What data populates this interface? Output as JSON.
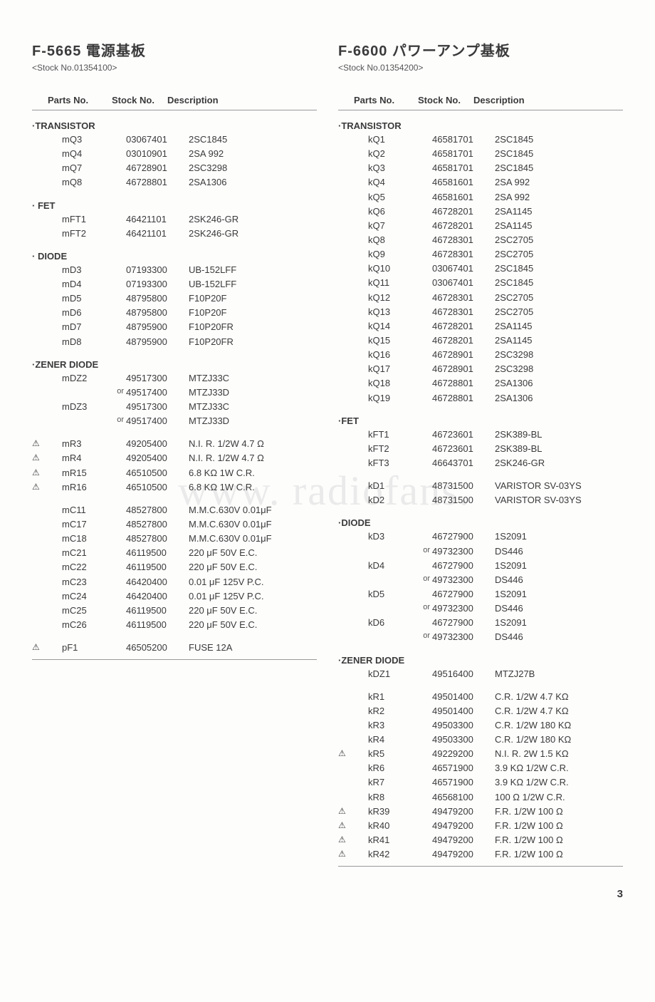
{
  "page_number": "3",
  "watermark": "www.    radiofans.",
  "headers": {
    "parts": "Parts No.",
    "stock": "Stock No.",
    "desc": "Description"
  },
  "left": {
    "title": "F-5665  電源基板",
    "stockline": "<Stock No.01354100>",
    "sections": [
      {
        "title": "·TRANSISTOR",
        "rows": [
          {
            "mark": "",
            "part": "mQ3",
            "or": "",
            "stock": "03067401",
            "desc": "2SC1845"
          },
          {
            "mark": "",
            "part": "mQ4",
            "or": "",
            "stock": "03010901",
            "desc": "2SA 992"
          },
          {
            "mark": "",
            "part": "mQ7",
            "or": "",
            "stock": "46728901",
            "desc": "2SC3298"
          },
          {
            "mark": "",
            "part": "mQ8",
            "or": "",
            "stock": "46728801",
            "desc": "2SA1306"
          }
        ]
      },
      {
        "title": "· FET",
        "rows": [
          {
            "mark": "",
            "part": "mFT1",
            "or": "",
            "stock": "46421101",
            "desc": "2SK246-GR"
          },
          {
            "mark": "",
            "part": "mFT2",
            "or": "",
            "stock": "46421101",
            "desc": "2SK246-GR"
          }
        ]
      },
      {
        "title": "· DIODE",
        "rows": [
          {
            "mark": "",
            "part": "mD3",
            "or": "",
            "stock": "07193300",
            "desc": "UB-152LFF"
          },
          {
            "mark": "",
            "part": "mD4",
            "or": "",
            "stock": "07193300",
            "desc": "UB-152LFF"
          },
          {
            "mark": "",
            "part": "mD5",
            "or": "",
            "stock": "48795800",
            "desc": "F10P20F"
          },
          {
            "mark": "",
            "part": "mD6",
            "or": "",
            "stock": "48795800",
            "desc": "F10P20F"
          },
          {
            "mark": "",
            "part": "mD7",
            "or": "",
            "stock": "48795900",
            "desc": "F10P20FR"
          },
          {
            "mark": "",
            "part": "mD8",
            "or": "",
            "stock": "48795900",
            "desc": "F10P20FR"
          }
        ]
      },
      {
        "title": "·ZENER DIODE",
        "rows": [
          {
            "mark": "",
            "part": "mDZ2",
            "or": "",
            "stock": "49517300",
            "desc": "MTZJ33C"
          },
          {
            "mark": "",
            "part": "",
            "or": "or",
            "stock": "49517400",
            "desc": "MTZJ33D"
          },
          {
            "mark": "",
            "part": "mDZ3",
            "or": "",
            "stock": "49517300",
            "desc": "MTZJ33C"
          },
          {
            "mark": "",
            "part": "",
            "or": "or",
            "stock": "49517400",
            "desc": "MTZJ33D"
          }
        ]
      },
      {
        "title": "",
        "rows": [
          {
            "mark": "⚠",
            "part": "mR3",
            "or": "",
            "stock": "49205400",
            "desc": "N.I. R. 1/2W 4.7 Ω"
          },
          {
            "mark": "⚠",
            "part": "mR4",
            "or": "",
            "stock": "49205400",
            "desc": "N.I. R. 1/2W 4.7 Ω"
          },
          {
            "mark": "⚠",
            "part": "mR15",
            "or": "",
            "stock": "46510500",
            "desc": "6.8 KΩ 1W C.R."
          },
          {
            "mark": "⚠",
            "part": "mR16",
            "or": "",
            "stock": "46510500",
            "desc": "6.8 KΩ 1W C.R."
          }
        ]
      },
      {
        "title": "",
        "rows": [
          {
            "mark": "",
            "part": "mC11",
            "or": "",
            "stock": "48527800",
            "desc": "M.M.C.630V 0.01μF"
          },
          {
            "mark": "",
            "part": "mC17",
            "or": "",
            "stock": "48527800",
            "desc": "M.M.C.630V 0.01μF"
          },
          {
            "mark": "",
            "part": "mC18",
            "or": "",
            "stock": "48527800",
            "desc": "M.M.C.630V 0.01μF"
          },
          {
            "mark": "",
            "part": "mC21",
            "or": "",
            "stock": "46119500",
            "desc": "220 μF 50V E.C."
          },
          {
            "mark": "",
            "part": "mC22",
            "or": "",
            "stock": "46119500",
            "desc": "220 μF 50V E.C."
          },
          {
            "mark": "",
            "part": "mC23",
            "or": "",
            "stock": "46420400",
            "desc": "0.01 μF 125V P.C."
          },
          {
            "mark": "",
            "part": "mC24",
            "or": "",
            "stock": "46420400",
            "desc": "0.01 μF 125V P.C."
          },
          {
            "mark": "",
            "part": "mC25",
            "or": "",
            "stock": "46119500",
            "desc": "220 μF 50V E.C."
          },
          {
            "mark": "",
            "part": "mC26",
            "or": "",
            "stock": "46119500",
            "desc": "220 μF 50V E.C."
          }
        ]
      },
      {
        "title": "",
        "rows": [
          {
            "mark": "⚠",
            "part": "pF1",
            "or": "",
            "stock": "46505200",
            "desc": "FUSE 12A"
          }
        ]
      }
    ]
  },
  "right": {
    "title": "F-6600  パワーアンプ基板",
    "stockline": "<Stock No.01354200>",
    "sections": [
      {
        "title": "·TRANSISTOR",
        "rows": [
          {
            "mark": "",
            "part": "kQ1",
            "or": "",
            "stock": "46581701",
            "desc": "2SC1845"
          },
          {
            "mark": "",
            "part": "kQ2",
            "or": "",
            "stock": "46581701",
            "desc": "2SC1845"
          },
          {
            "mark": "",
            "part": "kQ3",
            "or": "",
            "stock": "46581701",
            "desc": "2SC1845"
          },
          {
            "mark": "",
            "part": "kQ4",
            "or": "",
            "stock": "46581601",
            "desc": "2SA 992"
          },
          {
            "mark": "",
            "part": "kQ5",
            "or": "",
            "stock": "46581601",
            "desc": "2SA 992"
          },
          {
            "mark": "",
            "part": "kQ6",
            "or": "",
            "stock": "46728201",
            "desc": "2SA1145"
          },
          {
            "mark": "",
            "part": "kQ7",
            "or": "",
            "stock": "46728201",
            "desc": "2SA1145"
          },
          {
            "mark": "",
            "part": "kQ8",
            "or": "",
            "stock": "46728301",
            "desc": "2SC2705"
          },
          {
            "mark": "",
            "part": "kQ9",
            "or": "",
            "stock": "46728301",
            "desc": "2SC2705"
          },
          {
            "mark": "",
            "part": "kQ10",
            "or": "",
            "stock": "03067401",
            "desc": "2SC1845"
          },
          {
            "mark": "",
            "part": "kQ11",
            "or": "",
            "stock": "03067401",
            "desc": "2SC1845"
          },
          {
            "mark": "",
            "part": "kQ12",
            "or": "",
            "stock": "46728301",
            "desc": "2SC2705"
          },
          {
            "mark": "",
            "part": "kQ13",
            "or": "",
            "stock": "46728301",
            "desc": "2SC2705"
          },
          {
            "mark": "",
            "part": "kQ14",
            "or": "",
            "stock": "46728201",
            "desc": "2SA1145"
          },
          {
            "mark": "",
            "part": "kQ15",
            "or": "",
            "stock": "46728201",
            "desc": "2SA1145"
          },
          {
            "mark": "",
            "part": "kQ16",
            "or": "",
            "stock": "46728901",
            "desc": "2SC3298"
          },
          {
            "mark": "",
            "part": "kQ17",
            "or": "",
            "stock": "46728901",
            "desc": "2SC3298"
          },
          {
            "mark": "",
            "part": "kQ18",
            "or": "",
            "stock": "46728801",
            "desc": "2SA1306"
          },
          {
            "mark": "",
            "part": "kQ19",
            "or": "",
            "stock": "46728801",
            "desc": "2SA1306"
          }
        ]
      },
      {
        "title": "·FET",
        "rows": [
          {
            "mark": "",
            "part": "kFT1",
            "or": "",
            "stock": "46723601",
            "desc": "2SK389-BL"
          },
          {
            "mark": "",
            "part": "kFT2",
            "or": "",
            "stock": "46723601",
            "desc": "2SK389-BL"
          },
          {
            "mark": "",
            "part": "kFT3",
            "or": "",
            "stock": "46643701",
            "desc": "2SK246-GR"
          }
        ]
      },
      {
        "title": "",
        "rows": [
          {
            "mark": "",
            "part": "kD1",
            "or": "",
            "stock": "48731500",
            "desc": "VARISTOR SV-03YS"
          },
          {
            "mark": "",
            "part": "kD2",
            "or": "",
            "stock": "48731500",
            "desc": "VARISTOR SV-03YS"
          }
        ]
      },
      {
        "title": "·DIODE",
        "rows": [
          {
            "mark": "",
            "part": "kD3",
            "or": "",
            "stock": "46727900",
            "desc": "1S2091"
          },
          {
            "mark": "",
            "part": "",
            "or": "or",
            "stock": "49732300",
            "desc": "DS446"
          },
          {
            "mark": "",
            "part": "kD4",
            "or": "",
            "stock": "46727900",
            "desc": "1S2091"
          },
          {
            "mark": "",
            "part": "",
            "or": "or",
            "stock": "49732300",
            "desc": "DS446"
          },
          {
            "mark": "",
            "part": "kD5",
            "or": "",
            "stock": "46727900",
            "desc": "1S2091"
          },
          {
            "mark": "",
            "part": "",
            "or": "or",
            "stock": "49732300",
            "desc": "DS446"
          },
          {
            "mark": "",
            "part": "kD6",
            "or": "",
            "stock": "46727900",
            "desc": "1S2091"
          },
          {
            "mark": "",
            "part": "",
            "or": "or",
            "stock": "49732300",
            "desc": "DS446"
          }
        ]
      },
      {
        "title": "·ZENER DIODE",
        "rows": [
          {
            "mark": "",
            "part": "kDZ1",
            "or": "",
            "stock": "49516400",
            "desc": "MTZJ27B"
          }
        ]
      },
      {
        "title": "",
        "rows": [
          {
            "mark": "",
            "part": "kR1",
            "or": "",
            "stock": "49501400",
            "desc": "C.R. 1/2W 4.7 KΩ"
          },
          {
            "mark": "",
            "part": "kR2",
            "or": "",
            "stock": "49501400",
            "desc": "C.R. 1/2W 4.7 KΩ"
          },
          {
            "mark": "",
            "part": "kR3",
            "or": "",
            "stock": "49503300",
            "desc": "C.R. 1/2W 180 KΩ"
          },
          {
            "mark": "",
            "part": "kR4",
            "or": "",
            "stock": "49503300",
            "desc": "C.R. 1/2W 180 KΩ"
          },
          {
            "mark": "⚠",
            "part": "kR5",
            "or": "",
            "stock": "49229200",
            "desc": "N.I. R. 2W 1.5 KΩ"
          },
          {
            "mark": "",
            "part": "kR6",
            "or": "",
            "stock": "46571900",
            "desc": "3.9 KΩ 1/2W C.R."
          },
          {
            "mark": "",
            "part": "kR7",
            "or": "",
            "stock": "46571900",
            "desc": "3.9 KΩ 1/2W C.R."
          },
          {
            "mark": "",
            "part": "kR8",
            "or": "",
            "stock": "46568100",
            "desc": "100 Ω 1/2W C.R."
          },
          {
            "mark": "⚠",
            "part": "kR39",
            "or": "",
            "stock": "49479200",
            "desc": "F.R. 1/2W 100 Ω"
          },
          {
            "mark": "⚠",
            "part": "kR40",
            "or": "",
            "stock": "49479200",
            "desc": "F.R. 1/2W 100 Ω"
          },
          {
            "mark": "⚠",
            "part": "kR41",
            "or": "",
            "stock": "49479200",
            "desc": "F.R. 1/2W 100 Ω"
          },
          {
            "mark": "⚠",
            "part": "kR42",
            "or": "",
            "stock": "49479200",
            "desc": "F.R. 1/2W 100 Ω"
          }
        ]
      }
    ]
  }
}
